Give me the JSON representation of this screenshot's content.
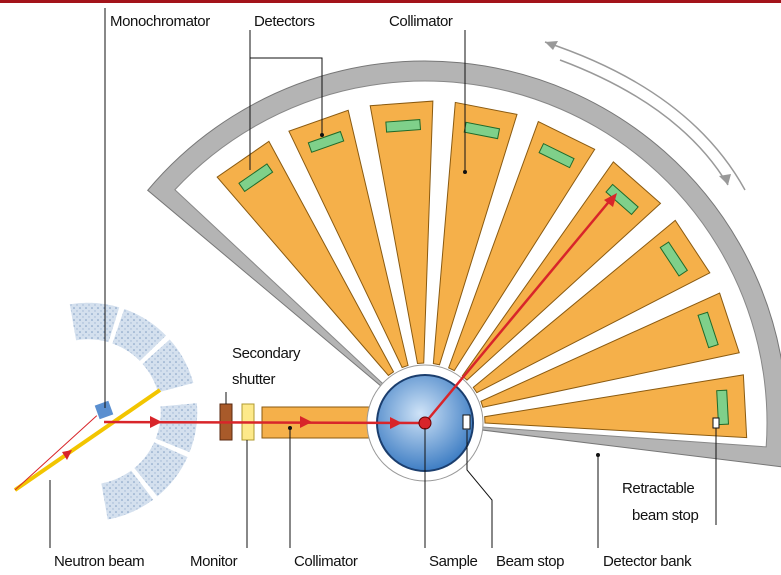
{
  "labels": {
    "monochromator": "Monochromator",
    "detectors": "Detectors",
    "collimator_top": "Collimator",
    "secondary_shutter": [
      "Secondary",
      "shutter"
    ],
    "retractable_beam_stop": [
      "Retractable",
      "beam stop"
    ],
    "neutron_beam": "Neutron beam",
    "monitor": "Monitor",
    "collimator_bottom": "Collimator",
    "sample": "Sample",
    "beam_stop": "Beam stop",
    "detector_bank": "Detector bank"
  }
}
